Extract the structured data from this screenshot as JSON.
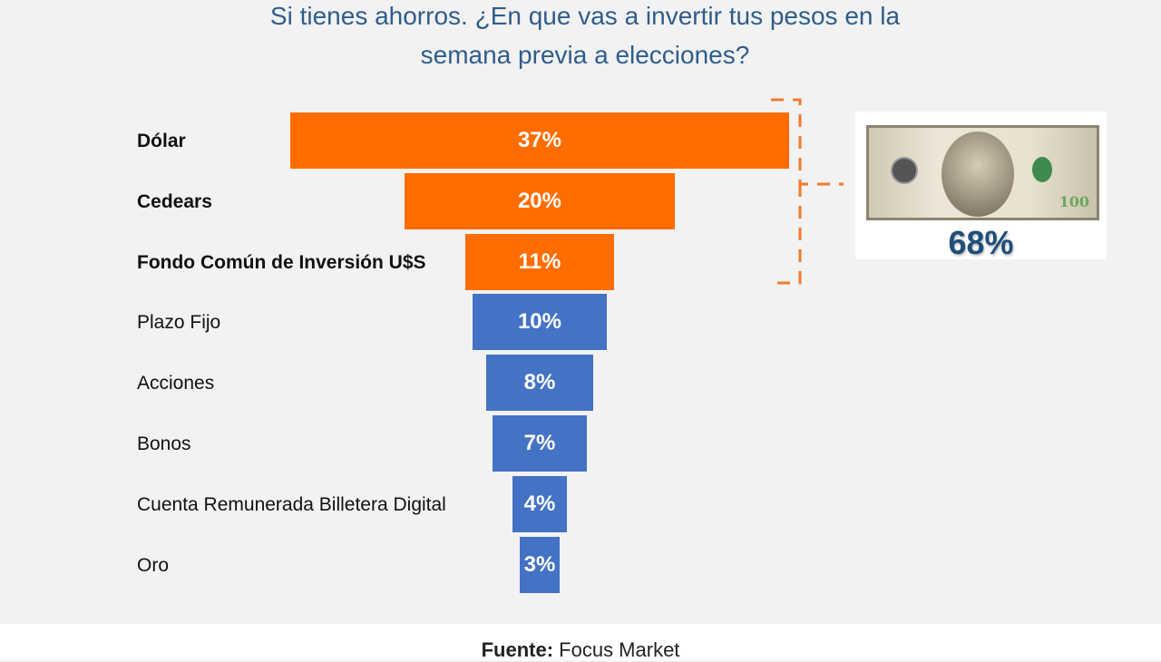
{
  "chart_data": {
    "type": "bar",
    "orientation": "horizontal-funnel",
    "title": "Si tienes ahorros. ¿En que vas a invertir tus pesos en la semana previa a elecciones?",
    "title_lines": [
      "Si tienes ahorros. ¿En que vas a invertir tus pesos en la",
      "semana previa a elecciones?"
    ],
    "categories": [
      "Dólar",
      "Cedears",
      "Fondo Común de Inversión U$S",
      "Plazo Fijo",
      "Acciones",
      "Bonos",
      "Cuenta Remunerada Billetera Digital",
      "Oro"
    ],
    "values": [
      37,
      20,
      11,
      10,
      8,
      7,
      4,
      3
    ],
    "data_labels": [
      "37%",
      "20%",
      "11%",
      "10%",
      "8%",
      "7%",
      "4%",
      "3%"
    ],
    "bold_categories": [
      true,
      true,
      true,
      false,
      false,
      false,
      false,
      false
    ],
    "colors": [
      "#ff6d00",
      "#ff6d00",
      "#ff6d00",
      "#4472c4",
      "#4472c4",
      "#4472c4",
      "#4472c4",
      "#4472c4"
    ],
    "annotation": {
      "group": [
        "Dólar",
        "Cedears",
        "Fondo Común de Inversión U$S"
      ],
      "total_label": "68%",
      "image": "hundred-dollar-bill",
      "bill_text": "100"
    },
    "grid": false
  },
  "footer": {
    "source_label": "Fuente:",
    "source_value": "Focus Market"
  }
}
